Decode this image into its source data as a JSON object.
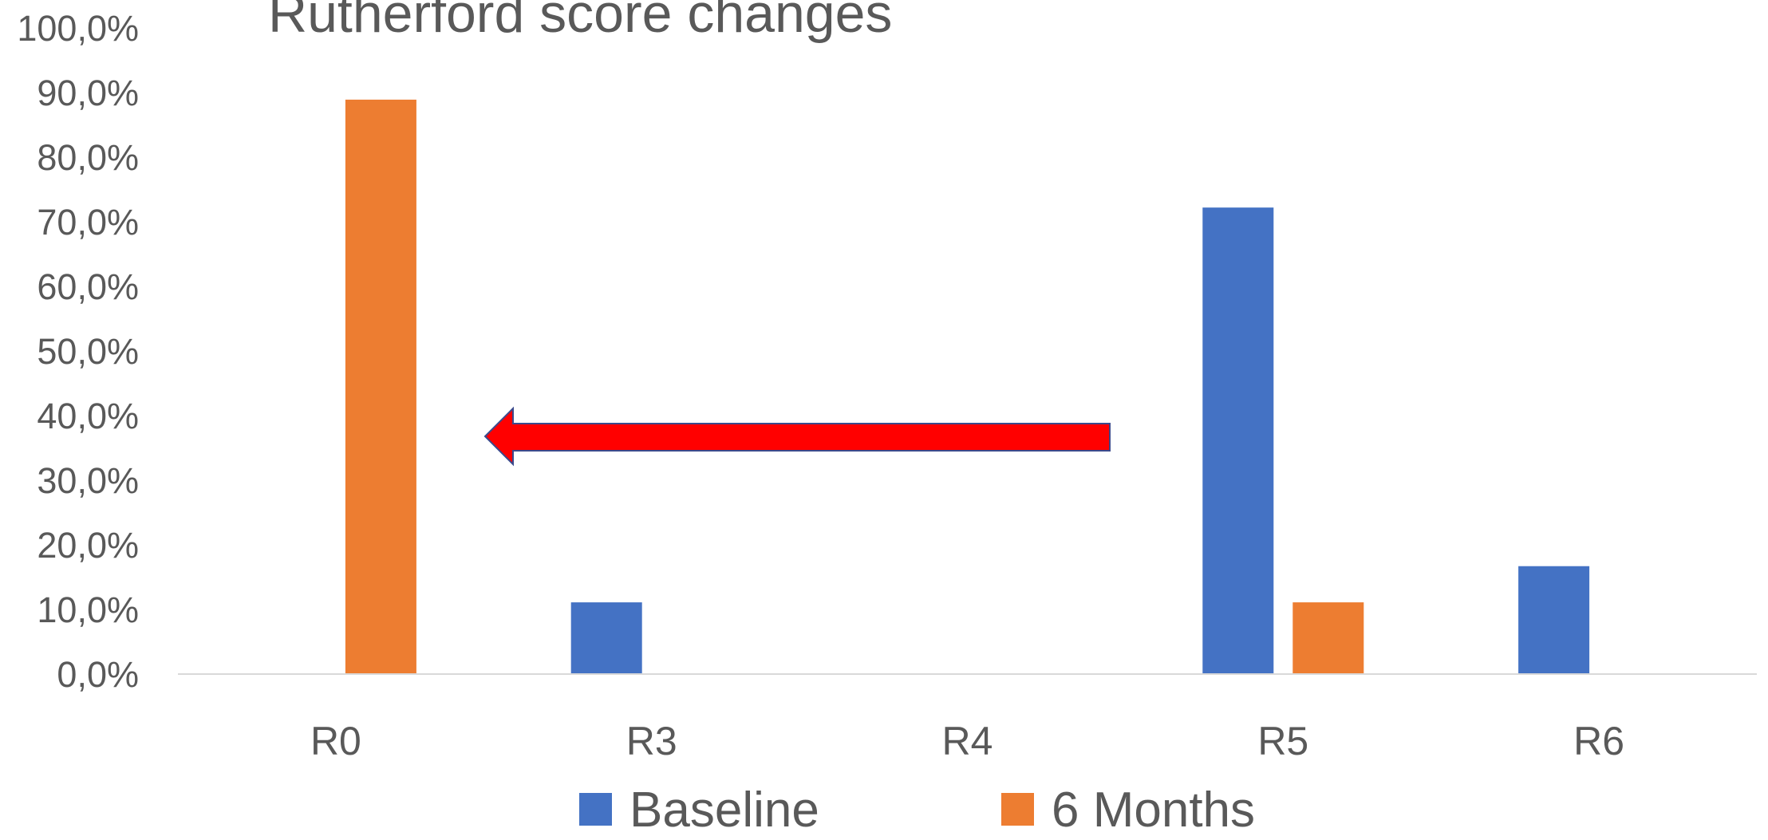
{
  "chart_data": {
    "type": "bar",
    "title": "Rutherford score changes",
    "categories": [
      "R0",
      "R3",
      "R4",
      "R5",
      "R6"
    ],
    "series": [
      {
        "name": "Baseline",
        "color": "#4472c4",
        "values": [
          0,
          11.1,
          0,
          72.2,
          16.7
        ]
      },
      {
        "name": "6 Months",
        "color": "#ed7d31",
        "values": [
          88.9,
          0,
          0,
          11.1,
          0
        ]
      }
    ],
    "ylim": [
      0,
      100
    ],
    "yticks": [
      {
        "value": 0,
        "label": "0,0%"
      },
      {
        "value": 10,
        "label": "10,0%"
      },
      {
        "value": 20,
        "label": "20,0%"
      },
      {
        "value": 30,
        "label": "30,0%"
      },
      {
        "value": 40,
        "label": "40,0%"
      },
      {
        "value": 50,
        "label": "50,0%"
      },
      {
        "value": 60,
        "label": "60,0%"
      },
      {
        "value": 70,
        "label": "70,0%"
      },
      {
        "value": 80,
        "label": "80,0%"
      },
      {
        "value": 90,
        "label": "90,0%"
      },
      {
        "value": 100,
        "label": "100,0%"
      }
    ],
    "grid": false,
    "legend": "bottom"
  }
}
